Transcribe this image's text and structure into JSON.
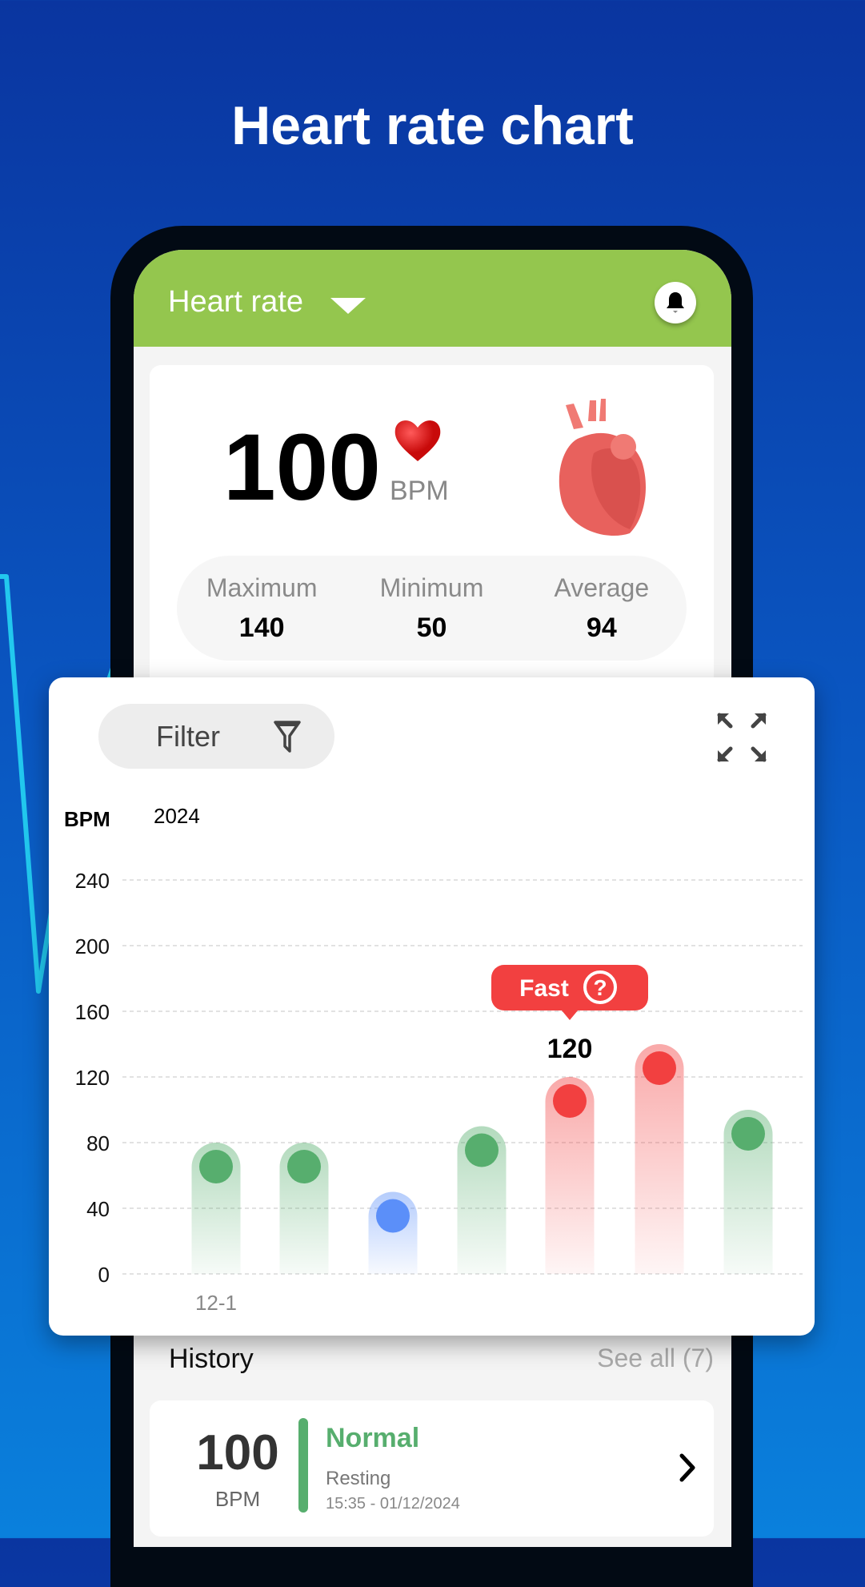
{
  "promo_title": "Heart rate chart",
  "header": {
    "title": "Heart rate",
    "dropdown_icon": "caret-down-icon",
    "bell_icon": "bell-icon"
  },
  "summary": {
    "value": "100",
    "unit": "BPM",
    "stats": [
      {
        "label": "Maximum",
        "value": "140"
      },
      {
        "label": "Minimum",
        "value": "50"
      },
      {
        "label": "Average",
        "value": "94"
      }
    ]
  },
  "chart_panel": {
    "filter_label": "Filter",
    "filter_icon": "funnel-icon",
    "expand_icon": "expand-icon"
  },
  "chart_data": {
    "type": "bar",
    "ylabel": "BPM",
    "period_label": "2024",
    "ylim": [
      0,
      240
    ],
    "yticks": [
      "0",
      "40",
      "80",
      "120",
      "160",
      "200",
      "240"
    ],
    "categories": [
      "12-1",
      "",
      "",
      "",
      "",
      "",
      ""
    ],
    "values": [
      80,
      80,
      50,
      90,
      120,
      140,
      100
    ],
    "status": [
      "normal",
      "normal",
      "slow",
      "normal",
      "fast",
      "fast",
      "normal"
    ],
    "colors": {
      "normal": "#57ae6e",
      "slow": "#5b8ff9",
      "fast": "#f24040"
    },
    "grid": true,
    "selected_index": 4,
    "tooltip": {
      "label": "Fast",
      "value": "120"
    }
  },
  "history": {
    "title": "History",
    "see_all": "See all (7)",
    "items": [
      {
        "value": "100",
        "unit": "BPM",
        "status": "Normal",
        "activity": "Resting",
        "time": "15:35 - 01/12/2024",
        "status_color": "#57ae6e"
      }
    ]
  }
}
